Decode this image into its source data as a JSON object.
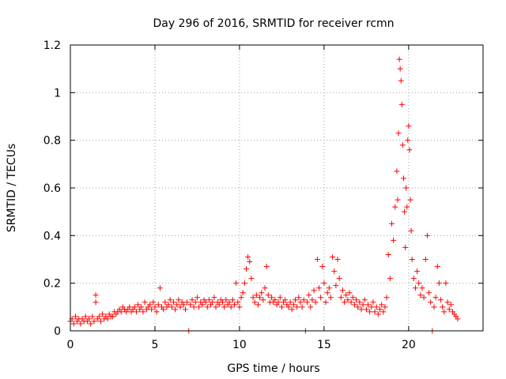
{
  "chart_data": {
    "type": "scatter",
    "title": "Day 296 of 2016, SRMTID for receiver rcmn",
    "xlabel": "GPS time / hours",
    "ylabel": "SRMTID / TECUs",
    "xlim": [
      0,
      24.4
    ],
    "ylim": [
      0,
      1.2
    ],
    "xticks": [
      0,
      5,
      10,
      15,
      20
    ],
    "yticks": [
      0,
      0.2,
      0.4,
      0.6,
      0.8,
      1,
      1.2
    ],
    "xtick_labels": [
      "0",
      "5",
      "10",
      "15",
      "20"
    ],
    "ytick_labels": [
      "0",
      "0.2",
      "0.4",
      "0.6",
      "0.8",
      "1",
      "1.2"
    ],
    "grid": true,
    "marker": "+",
    "series": [
      {
        "name": "SRMTID",
        "color": "#ff0000",
        "points": [
          [
            0.0,
            0.04
          ],
          [
            0.1,
            0.05
          ],
          [
            0.2,
            0.03
          ],
          [
            0.3,
            0.06
          ],
          [
            0.4,
            0.04
          ],
          [
            0.5,
            0.05
          ],
          [
            0.6,
            0.03
          ],
          [
            0.7,
            0.05
          ],
          [
            0.8,
            0.04
          ],
          [
            0.9,
            0.06
          ],
          [
            1.0,
            0.04
          ],
          [
            1.1,
            0.05
          ],
          [
            1.2,
            0.03
          ],
          [
            1.3,
            0.06
          ],
          [
            1.4,
            0.04
          ],
          [
            1.5,
            0.15
          ],
          [
            1.5,
            0.12
          ],
          [
            1.6,
            0.05
          ],
          [
            1.7,
            0.06
          ],
          [
            1.8,
            0.04
          ],
          [
            1.9,
            0.07
          ],
          [
            2.0,
            0.05
          ],
          [
            2.1,
            0.06
          ],
          [
            2.2,
            0.05
          ],
          [
            2.3,
            0.07
          ],
          [
            2.4,
            0.06
          ],
          [
            2.5,
            0.06
          ],
          [
            2.6,
            0.08
          ],
          [
            2.7,
            0.07
          ],
          [
            2.8,
            0.08
          ],
          [
            2.9,
            0.09
          ],
          [
            3.0,
            0.08
          ],
          [
            3.1,
            0.1
          ],
          [
            3.2,
            0.09
          ],
          [
            3.3,
            0.08
          ],
          [
            3.4,
            0.09
          ],
          [
            3.5,
            0.1
          ],
          [
            3.6,
            0.08
          ],
          [
            3.7,
            0.09
          ],
          [
            3.8,
            0.1
          ],
          [
            3.9,
            0.08
          ],
          [
            4.0,
            0.11
          ],
          [
            4.1,
            0.09
          ],
          [
            4.2,
            0.1
          ],
          [
            4.3,
            0.08
          ],
          [
            4.4,
            0.12
          ],
          [
            4.5,
            0.09
          ],
          [
            4.6,
            0.1
          ],
          [
            4.7,
            0.11
          ],
          [
            4.8,
            0.09
          ],
          [
            4.9,
            0.12
          ],
          [
            5.0,
            0.1
          ],
          [
            5.1,
            0.08
          ],
          [
            5.2,
            0.11
          ],
          [
            5.3,
            0.18
          ],
          [
            5.4,
            0.1
          ],
          [
            5.5,
            0.09
          ],
          [
            5.6,
            0.12
          ],
          [
            5.7,
            0.1
          ],
          [
            5.8,
            0.11
          ],
          [
            5.9,
            0.13
          ],
          [
            6.0,
            0.1
          ],
          [
            6.1,
            0.12
          ],
          [
            6.2,
            0.09
          ],
          [
            6.3,
            0.11
          ],
          [
            6.4,
            0.13
          ],
          [
            6.5,
            0.1
          ],
          [
            6.6,
            0.12
          ],
          [
            6.7,
            0.11
          ],
          [
            6.8,
            0.09
          ],
          [
            6.9,
            0.12
          ],
          [
            7.0,
            0.0
          ],
          [
            7.1,
            0.11
          ],
          [
            7.2,
            0.13
          ],
          [
            7.3,
            0.1
          ],
          [
            7.4,
            0.12
          ],
          [
            7.5,
            0.14
          ],
          [
            7.6,
            0.1
          ],
          [
            7.7,
            0.12
          ],
          [
            7.8,
            0.11
          ],
          [
            7.9,
            0.13
          ],
          [
            8.0,
            0.12
          ],
          [
            8.1,
            0.1
          ],
          [
            8.2,
            0.13
          ],
          [
            8.3,
            0.11
          ],
          [
            8.4,
            0.12
          ],
          [
            8.5,
            0.14
          ],
          [
            8.6,
            0.1
          ],
          [
            8.7,
            0.12
          ],
          [
            8.8,
            0.11
          ],
          [
            8.9,
            0.13
          ],
          [
            9.0,
            0.12
          ],
          [
            9.1,
            0.1
          ],
          [
            9.2,
            0.13
          ],
          [
            9.3,
            0.11
          ],
          [
            9.4,
            0.12
          ],
          [
            9.5,
            0.1
          ],
          [
            9.6,
            0.13
          ],
          [
            9.7,
            0.11
          ],
          [
            9.8,
            0.2
          ],
          [
            9.9,
            0.12
          ],
          [
            10.0,
            0.1
          ],
          [
            10.1,
            0.14
          ],
          [
            10.2,
            0.16
          ],
          [
            10.3,
            0.2
          ],
          [
            10.4,
            0.26
          ],
          [
            10.5,
            0.31
          ],
          [
            10.6,
            0.29
          ],
          [
            10.7,
            0.22
          ],
          [
            10.8,
            0.14
          ],
          [
            10.9,
            0.12
          ],
          [
            11.0,
            0.15
          ],
          [
            11.1,
            0.11
          ],
          [
            11.2,
            0.14
          ],
          [
            11.3,
            0.16
          ],
          [
            11.4,
            0.13
          ],
          [
            11.5,
            0.18
          ],
          [
            11.6,
            0.27
          ],
          [
            11.7,
            0.15
          ],
          [
            11.8,
            0.12
          ],
          [
            11.9,
            0.14
          ],
          [
            12.0,
            0.12
          ],
          [
            12.1,
            0.13
          ],
          [
            12.2,
            0.11
          ],
          [
            12.3,
            0.12
          ],
          [
            12.4,
            0.14
          ],
          [
            12.5,
            0.1
          ],
          [
            12.6,
            0.12
          ],
          [
            12.7,
            0.13
          ],
          [
            12.8,
            0.11
          ],
          [
            12.9,
            0.1
          ],
          [
            13.0,
            0.12
          ],
          [
            13.1,
            0.09
          ],
          [
            13.2,
            0.11
          ],
          [
            13.3,
            0.13
          ],
          [
            13.4,
            0.1
          ],
          [
            13.5,
            0.14
          ],
          [
            13.6,
            0.12
          ],
          [
            13.7,
            0.1
          ],
          [
            13.8,
            0.13
          ],
          [
            13.9,
            0.0
          ],
          [
            14.0,
            0.12
          ],
          [
            14.1,
            0.15
          ],
          [
            14.2,
            0.1
          ],
          [
            14.3,
            0.13
          ],
          [
            14.4,
            0.17
          ],
          [
            14.5,
            0.12
          ],
          [
            14.6,
            0.3
          ],
          [
            14.7,
            0.18
          ],
          [
            14.8,
            0.14
          ],
          [
            14.9,
            0.27
          ],
          [
            15.0,
            0.2
          ],
          [
            15.1,
            0.12
          ],
          [
            15.2,
            0.16
          ],
          [
            15.3,
            0.18
          ],
          [
            15.4,
            0.14
          ],
          [
            15.5,
            0.31
          ],
          [
            15.6,
            0.25
          ],
          [
            15.7,
            0.19
          ],
          [
            15.8,
            0.3
          ],
          [
            15.9,
            0.22
          ],
          [
            16.0,
            0.14
          ],
          [
            16.1,
            0.17
          ],
          [
            16.2,
            0.12
          ],
          [
            16.3,
            0.15
          ],
          [
            16.4,
            0.13
          ],
          [
            16.5,
            0.16
          ],
          [
            16.6,
            0.12
          ],
          [
            16.7,
            0.14
          ],
          [
            16.8,
            0.11
          ],
          [
            16.9,
            0.13
          ],
          [
            17.0,
            0.1
          ],
          [
            17.1,
            0.12
          ],
          [
            17.2,
            0.09
          ],
          [
            17.3,
            0.11
          ],
          [
            17.4,
            0.13
          ],
          [
            17.5,
            0.09
          ],
          [
            17.6,
            0.11
          ],
          [
            17.7,
            0.08
          ],
          [
            17.8,
            0.1
          ],
          [
            17.9,
            0.12
          ],
          [
            18.0,
            0.08
          ],
          [
            18.1,
            0.1
          ],
          [
            18.2,
            0.07
          ],
          [
            18.3,
            0.09
          ],
          [
            18.4,
            0.11
          ],
          [
            18.5,
            0.08
          ],
          [
            18.6,
            0.1
          ],
          [
            18.7,
            0.14
          ],
          [
            18.8,
            0.32
          ],
          [
            18.9,
            0.22
          ],
          [
            19.0,
            0.45
          ],
          [
            19.1,
            0.38
          ],
          [
            19.2,
            0.52
          ],
          [
            19.3,
            0.67
          ],
          [
            19.35,
            0.55
          ],
          [
            19.4,
            0.83
          ],
          [
            19.45,
            1.14
          ],
          [
            19.5,
            1.1
          ],
          [
            19.55,
            1.05
          ],
          [
            19.6,
            0.95
          ],
          [
            19.65,
            0.78
          ],
          [
            19.7,
            0.64
          ],
          [
            19.75,
            0.5
          ],
          [
            19.8,
            0.35
          ],
          [
            19.85,
            0.6
          ],
          [
            19.9,
            0.52
          ],
          [
            19.95,
            0.8
          ],
          [
            20.0,
            0.86
          ],
          [
            20.05,
            0.76
          ],
          [
            20.1,
            0.55
          ],
          [
            20.15,
            0.42
          ],
          [
            20.2,
            0.3
          ],
          [
            20.3,
            0.22
          ],
          [
            20.4,
            0.18
          ],
          [
            20.5,
            0.25
          ],
          [
            20.6,
            0.2
          ],
          [
            20.7,
            0.15
          ],
          [
            20.8,
            0.18
          ],
          [
            20.9,
            0.14
          ],
          [
            21.0,
            0.3
          ],
          [
            21.1,
            0.4
          ],
          [
            21.2,
            0.16
          ],
          [
            21.3,
            0.12
          ],
          [
            21.4,
            0.0
          ],
          [
            21.5,
            0.1
          ],
          [
            21.6,
            0.14
          ],
          [
            21.7,
            0.27
          ],
          [
            21.8,
            0.2
          ],
          [
            21.9,
            0.13
          ],
          [
            22.0,
            0.1
          ],
          [
            22.1,
            0.08
          ],
          [
            22.2,
            0.2
          ],
          [
            22.3,
            0.12
          ],
          [
            22.4,
            0.09
          ],
          [
            22.5,
            0.11
          ],
          [
            22.6,
            0.08
          ],
          [
            22.7,
            0.07
          ],
          [
            22.8,
            0.06
          ],
          [
            22.9,
            0.05
          ]
        ]
      }
    ]
  }
}
